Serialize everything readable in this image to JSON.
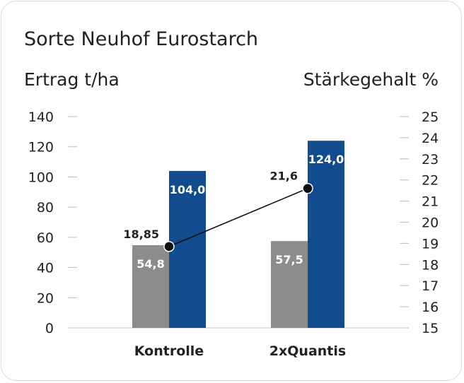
{
  "chart_data": {
    "type": "bar",
    "title": "Sorte Neuhof Eurostarch",
    "ylabel_left": "Ertrag t/ha",
    "ylabel_right": "Stärkegehalt %",
    "categories": [
      "Kontrolle",
      "2xQuantis"
    ],
    "series": [
      {
        "values": [
          54.8,
          57.5
        ],
        "labels": [
          "54,8",
          "57,5"
        ],
        "color": "#8c8c8c"
      },
      {
        "values": [
          104.0,
          124.0
        ],
        "labels": [
          "104,0",
          "124,0"
        ],
        "color": "#124b8e"
      }
    ],
    "line_series": {
      "values": [
        18.85,
        21.6
      ],
      "labels": [
        "18,85",
        "21,6"
      ],
      "color": "#111111"
    },
    "ylim_left": [
      0,
      140
    ],
    "yticks_left": [
      "0",
      "20",
      "40",
      "60",
      "80",
      "100",
      "120",
      "140"
    ],
    "ylim_right": [
      15,
      25
    ],
    "yticks_right": [
      "15",
      "16",
      "17",
      "18",
      "19",
      "20",
      "21",
      "22",
      "23",
      "24",
      "25"
    ],
    "grid": false
  }
}
